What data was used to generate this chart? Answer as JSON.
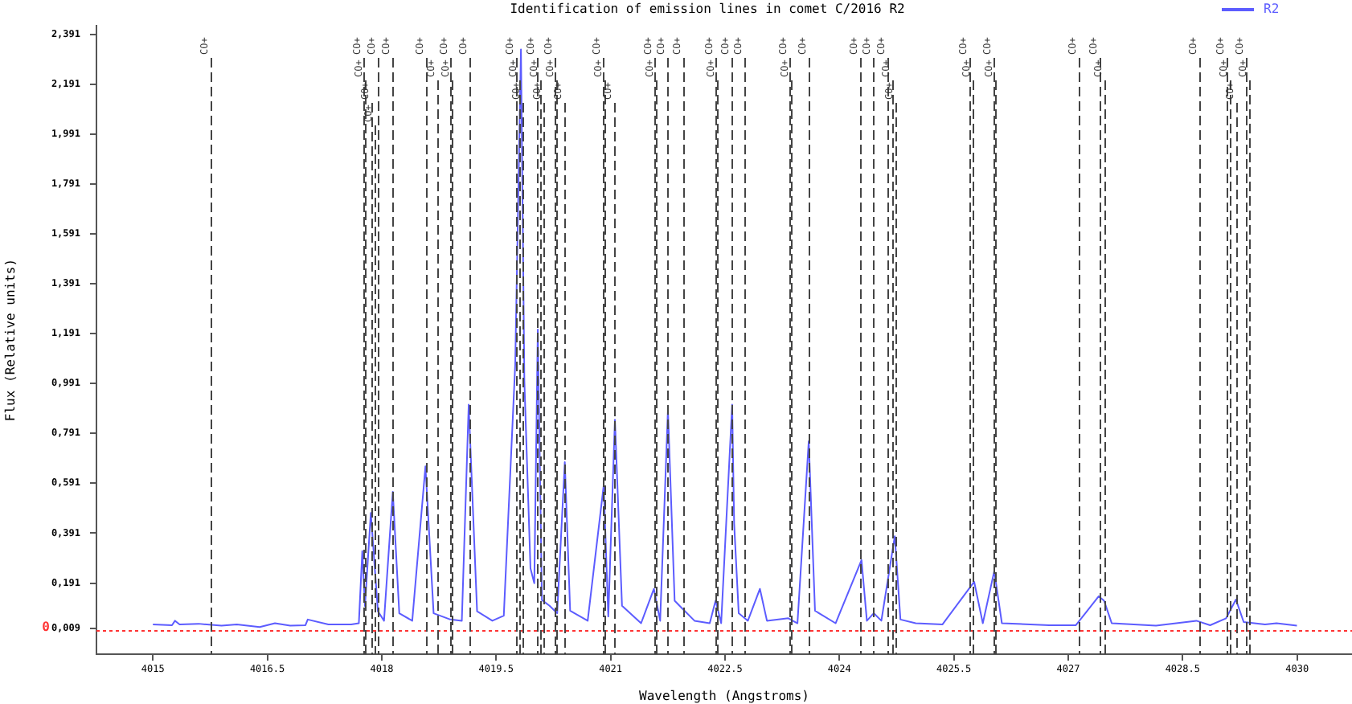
{
  "chart_data": {
    "type": "line",
    "title": "Identification of emission lines in comet C/2016 R2",
    "xlabel": "Wavelength (Angstroms)",
    "ylabel": "Flux (Relative units)",
    "xlim": [
      4014.26,
      4030.72
    ],
    "xticks": [
      4015,
      4016.5,
      4018,
      4019.5,
      4021,
      4022.5,
      4024,
      4025.5,
      4027,
      4028.5,
      4030
    ],
    "ylim": [
      -0.094,
      2.425
    ],
    "yticks": [
      {
        "value": 0.009,
        "label": "0,009"
      },
      {
        "value": 0.191,
        "label": "0,191"
      },
      {
        "value": 0.391,
        "label": "0,391"
      },
      {
        "value": 0.591,
        "label": "0,591"
      },
      {
        "value": 0.791,
        "label": "0,791"
      },
      {
        "value": 0.991,
        "label": "0,991"
      },
      {
        "value": 1.191,
        "label": "1,191"
      },
      {
        "value": 1.391,
        "label": "1,391"
      },
      {
        "value": 1.591,
        "label": "1,591"
      },
      {
        "value": 1.791,
        "label": "1,791"
      },
      {
        "value": 1.991,
        "label": "1,991"
      },
      {
        "value": 2.191,
        "label": "2,191"
      },
      {
        "value": 2.391,
        "label": "2,391"
      }
    ],
    "grid": false,
    "legend": "top right",
    "marker": "none",
    "series": [
      {
        "name": "R2",
        "color": "#5c5cff",
        "x": [
          4015.0,
          4015.25,
          4015.29,
          4015.35,
          4015.6,
          4015.9,
          4016.1,
          4016.4,
          4016.6,
          4016.8,
          4017.0,
          4017.03,
          4017.3,
          4017.6,
          4017.7,
          4017.745,
          4017.78,
          4017.857,
          4017.95,
          4018.03,
          4018.145,
          4018.23,
          4018.4,
          4018.573,
          4018.68,
          4018.9,
          4019.05,
          4019.14,
          4019.25,
          4019.45,
          4019.6,
          4019.75,
          4019.825,
          4019.87,
          4019.95,
          4020.0,
          4020.046,
          4020.1,
          4020.2,
          4020.3,
          4020.4,
          4020.47,
          4020.7,
          4020.91,
          4020.97,
          4021.057,
          4021.15,
          4021.4,
          4021.568,
          4021.65,
          4021.752,
          4021.84,
          4021.94,
          4022.1,
          4022.3,
          4022.377,
          4022.45,
          4022.594,
          4022.62,
          4022.68,
          4022.8,
          4022.958,
          4023.05,
          4023.33,
          4023.45,
          4023.598,
          4023.68,
          4023.95,
          4024.29,
          4024.36,
          4024.45,
          4024.55,
          4024.726,
          4024.8,
          4025.0,
          4025.35,
          4025.767,
          4025.88,
          4026.03,
          4026.13,
          4026.75,
          4027.1,
          4027.4,
          4027.47,
          4027.57,
          4028.15,
          4028.68,
          4028.86,
          4029.07,
          4029.198,
          4029.3,
          4029.58,
          4029.73,
          4029.998
        ],
        "values": [
          0.025,
          0.022,
          0.04,
          0.025,
          0.028,
          0.02,
          0.025,
          0.015,
          0.03,
          0.02,
          0.022,
          0.045,
          0.025,
          0.025,
          0.03,
          0.319,
          0.099,
          0.472,
          0.078,
          0.04,
          0.557,
          0.07,
          0.04,
          0.659,
          0.07,
          0.045,
          0.04,
          0.906,
          0.078,
          0.04,
          0.06,
          1.067,
          2.33,
          1.0,
          0.25,
          0.19,
          1.207,
          0.123,
          0.1,
          0.07,
          0.676,
          0.08,
          0.04,
          0.583,
          0.057,
          0.846,
          0.1,
          0.03,
          0.168,
          0.04,
          0.884,
          0.12,
          0.089,
          0.04,
          0.03,
          0.121,
          0.03,
          0.906,
          0.43,
          0.07,
          0.04,
          0.168,
          0.04,
          0.05,
          0.03,
          0.76,
          0.08,
          0.03,
          0.283,
          0.04,
          0.07,
          0.04,
          0.379,
          0.045,
          0.03,
          0.025,
          0.196,
          0.03,
          0.239,
          0.03,
          0.022,
          0.022,
          0.138,
          0.12,
          0.03,
          0.02,
          0.04,
          0.022,
          0.05,
          0.125,
          0.035,
          0.025,
          0.03,
          0.02
        ]
      }
    ],
    "ref_lines": [
      {
        "axis": "y",
        "value": 0,
        "label": "0",
        "color": "#ff3333",
        "line_style": "dotted"
      },
      {
        "axis": "x",
        "value": 4015.76,
        "label": "CO+",
        "color": "#444444",
        "line_style": "dashed"
      },
      {
        "axis": "x",
        "value": 4017.75,
        "label": "CO+",
        "color": "#444444",
        "line_style": "dashed"
      },
      {
        "axis": "x",
        "value": 4017.78,
        "label": "CO+",
        "color": "#444444",
        "line_style": "dashed"
      },
      {
        "axis": "x",
        "value": 4017.86,
        "label": "CO+",
        "color": "#444444",
        "line_style": "dashed"
      },
      {
        "axis": "x",
        "value": 4017.9,
        "label": "CO+",
        "color": "#444444",
        "line_style": "dashed"
      },
      {
        "axis": "x",
        "value": 4017.94,
        "label": "CO+",
        "color": "#444444",
        "line_style": "dashed"
      },
      {
        "axis": "x",
        "value": 4018.14,
        "label": "CO+",
        "color": "#444444",
        "line_style": "dashed"
      },
      {
        "axis": "x",
        "value": 4018.57,
        "label": "CO+",
        "color": "#444444",
        "line_style": "dashed"
      },
      {
        "axis": "x",
        "value": 4018.73,
        "label": "CO+",
        "color": "#444444",
        "line_style": "dashed"
      },
      {
        "axis": "x",
        "value": 4018.9,
        "label": "CO+",
        "color": "#444444",
        "line_style": "dashed"
      },
      {
        "axis": "x",
        "value": 4018.92,
        "label": "CO+",
        "color": "#444444",
        "line_style": "dashed"
      },
      {
        "axis": "x",
        "value": 4019.14,
        "label": "CO+",
        "color": "#444444",
        "line_style": "dashed"
      },
      {
        "axis": "x",
        "value": 4019.77,
        "label": "CO+",
        "color": "#444444",
        "line_style": "dashed"
      },
      {
        "axis": "x",
        "value": 4019.8,
        "label": "CO+",
        "color": "#444444",
        "line_style": "dashed"
      },
      {
        "axis": "x",
        "value": 4019.84,
        "label": "CO+",
        "color": "#444444",
        "line_style": "dashed"
      },
      {
        "axis": "x",
        "value": 4020.04,
        "label": "CO+",
        "color": "#444444",
        "line_style": "dashed"
      },
      {
        "axis": "x",
        "value": 4020.07,
        "label": "CO+",
        "color": "#444444",
        "line_style": "dashed"
      },
      {
        "axis": "x",
        "value": 4020.12,
        "label": "CO+",
        "color": "#444444",
        "line_style": "dashed"
      },
      {
        "axis": "x",
        "value": 4020.26,
        "label": "CO+",
        "color": "#444444",
        "line_style": "dashed"
      },
      {
        "axis": "x",
        "value": 4020.28,
        "label": "CO+",
        "color": "#444444",
        "line_style": "dashed"
      },
      {
        "axis": "x",
        "value": 4020.4,
        "label": "CO+",
        "color": "#444444",
        "line_style": "dashed"
      },
      {
        "axis": "x",
        "value": 4020.9,
        "label": "CO+",
        "color": "#444444",
        "line_style": "dashed"
      },
      {
        "axis": "x",
        "value": 4020.93,
        "label": "CO+",
        "color": "#444444",
        "line_style": "dashed"
      },
      {
        "axis": "x",
        "value": 4021.05,
        "label": "CO+",
        "color": "#444444",
        "line_style": "dashed"
      },
      {
        "axis": "x",
        "value": 4021.57,
        "label": "CO+",
        "color": "#444444",
        "line_style": "dashed"
      },
      {
        "axis": "x",
        "value": 4021.6,
        "label": "CO+",
        "color": "#444444",
        "line_style": "dashed"
      },
      {
        "axis": "x",
        "value": 4021.75,
        "label": "CO+",
        "color": "#444444",
        "line_style": "dashed"
      },
      {
        "axis": "x",
        "value": 4021.95,
        "label": "CO+",
        "color": "#444444",
        "line_style": "dashed"
      },
      {
        "axis": "x",
        "value": 4022.38,
        "label": "CO+",
        "color": "#444444",
        "line_style": "dashed"
      },
      {
        "axis": "x",
        "value": 4022.39,
        "label": "CO+",
        "color": "#444444",
        "line_style": "dashed"
      },
      {
        "axis": "x",
        "value": 4022.59,
        "label": "CO+",
        "color": "#444444",
        "line_style": "dashed"
      },
      {
        "axis": "x",
        "value": 4022.75,
        "label": "CO+",
        "color": "#444444",
        "line_style": "dashed"
      },
      {
        "axis": "x",
        "value": 4023.34,
        "label": "CO+",
        "color": "#444444",
        "line_style": "dashed"
      },
      {
        "axis": "x",
        "value": 4023.36,
        "label": "CO+",
        "color": "#444444",
        "line_style": "dashed"
      },
      {
        "axis": "x",
        "value": 4023.6,
        "label": "CO+",
        "color": "#444444",
        "line_style": "dashed"
      },
      {
        "axis": "x",
        "value": 4024.28,
        "label": "CO+",
        "color": "#444444",
        "line_style": "dashed"
      },
      {
        "axis": "x",
        "value": 4024.45,
        "label": "CO+",
        "color": "#444444",
        "line_style": "dashed"
      },
      {
        "axis": "x",
        "value": 4024.63,
        "label": "CO+",
        "color": "#444444",
        "line_style": "dashed"
      },
      {
        "axis": "x",
        "value": 4024.7,
        "label": "CO+",
        "color": "#444444",
        "line_style": "dashed"
      },
      {
        "axis": "x",
        "value": 4024.73,
        "label": "CO+",
        "color": "#444444",
        "line_style": "dashed"
      },
      {
        "axis": "x",
        "value": 4025.7,
        "label": "CO+",
        "color": "#444444",
        "line_style": "dashed"
      },
      {
        "axis": "x",
        "value": 4025.75,
        "label": "CO+",
        "color": "#444444",
        "line_style": "dashed"
      },
      {
        "axis": "x",
        "value": 4026.02,
        "label": "CO+",
        "color": "#444444",
        "line_style": "dashed"
      },
      {
        "axis": "x",
        "value": 4026.04,
        "label": "CO+",
        "color": "#444444",
        "line_style": "dashed"
      },
      {
        "axis": "x",
        "value": 4027.14,
        "label": "CO+",
        "color": "#444444",
        "line_style": "dashed"
      },
      {
        "axis": "x",
        "value": 4027.41,
        "label": "CO+",
        "color": "#444444",
        "line_style": "dashed"
      },
      {
        "axis": "x",
        "value": 4027.47,
        "label": "CO+",
        "color": "#444444",
        "line_style": "dashed"
      },
      {
        "axis": "x",
        "value": 4028.71,
        "label": "CO+",
        "color": "#444444",
        "line_style": "dashed"
      },
      {
        "axis": "x",
        "value": 4029.08,
        "label": "CO+",
        "color": "#444444",
        "line_style": "dashed"
      },
      {
        "axis": "x",
        "value": 4029.11,
        "label": "CO+",
        "color": "#444444",
        "line_style": "dashed"
      },
      {
        "axis": "x",
        "value": 4029.2,
        "label": "CO+",
        "color": "#444444",
        "line_style": "dashed"
      },
      {
        "axis": "x",
        "value": 4029.33,
        "label": "CO+",
        "color": "#444444",
        "line_style": "dashed"
      },
      {
        "axis": "x",
        "value": 4029.37,
        "label": "CO+",
        "color": "#444444",
        "line_style": "dashed"
      }
    ]
  }
}
